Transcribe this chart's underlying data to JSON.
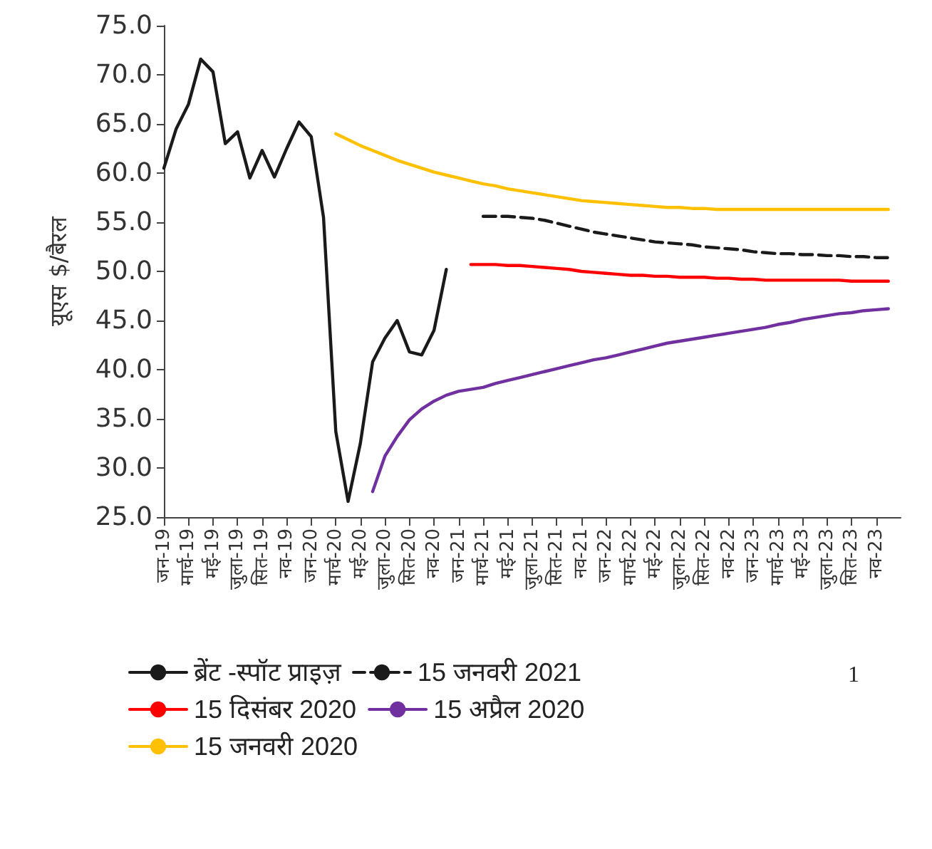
{
  "chart_data": {
    "type": "line",
    "ylabel": "यूएस $/बैरल",
    "categories": [
      "जन-19",
      null,
      "मार्च-19",
      null,
      "मई-19",
      null,
      "जुला-19",
      null,
      "सित-19",
      null,
      "नव-19",
      null,
      "जन-20",
      null,
      "मार्च-20",
      null,
      "मई-20",
      null,
      "जुला-20",
      null,
      "सित-20",
      null,
      "नव-20",
      null,
      "जन-21",
      null,
      "मार्च-21",
      null,
      "मई-21",
      null,
      "जुला-21",
      null,
      "सित-21",
      null,
      "नव-21",
      null,
      "जन-22",
      null,
      "मार्च-22",
      null,
      "मई-22",
      null,
      "जुला-22",
      null,
      "सित-22",
      null,
      "नव-22",
      null,
      "जन-23",
      null,
      "मार्च-23",
      null,
      "मई-23",
      null,
      "जुला-23",
      null,
      "सित-23",
      null,
      "नव-23",
      null,
      null
    ],
    "series": [
      {
        "name": "ब्रेंट -स्पॉट प्राइज़",
        "color": "#1a1a1a",
        "values": [
          60.5,
          64.5,
          67,
          71.6,
          70.3,
          63,
          64.2,
          59.5,
          62.3,
          59.6,
          62.5,
          65.2,
          63.7,
          55.5,
          33.7,
          26.6,
          32.5,
          40.8,
          43.2,
          45,
          41.8,
          41.5,
          44,
          50.2,
          null,
          null,
          null,
          null,
          null,
          null,
          null,
          null,
          null,
          null,
          null,
          null,
          null,
          null,
          null,
          null,
          null,
          null,
          null,
          null,
          null,
          null,
          null,
          null,
          null,
          null,
          null,
          null,
          null,
          null,
          null,
          null,
          null,
          null,
          null,
          null,
          null
        ]
      },
      {
        "name": "15 जनवरी 2021",
        "color": "#1a1a1a",
        "line_style": "dashed",
        "values": [
          null,
          null,
          null,
          null,
          null,
          null,
          null,
          null,
          null,
          null,
          null,
          null,
          null,
          null,
          null,
          null,
          null,
          null,
          null,
          null,
          null,
          null,
          null,
          null,
          null,
          null,
          55.6,
          55.6,
          55.6,
          55.5,
          55.4,
          55.2,
          54.9,
          54.6,
          54.3,
          54.0,
          53.8,
          53.6,
          53.4,
          53.2,
          53.0,
          52.9,
          52.8,
          52.7,
          52.5,
          52.4,
          52.3,
          52.2,
          52.0,
          51.9,
          51.8,
          51.8,
          51.7,
          51.7,
          51.6,
          51.6,
          51.5,
          51.5,
          51.4,
          51.4,
          null
        ]
      },
      {
        "name": "15 दिसंबर 2020",
        "color": "#ff0000",
        "values": [
          null,
          null,
          null,
          null,
          null,
          null,
          null,
          null,
          null,
          null,
          null,
          null,
          null,
          null,
          null,
          null,
          null,
          null,
          null,
          null,
          null,
          null,
          null,
          null,
          null,
          50.7,
          50.7,
          50.7,
          50.6,
          50.6,
          50.5,
          50.4,
          50.3,
          50.2,
          50.0,
          49.9,
          49.8,
          49.7,
          49.6,
          49.6,
          49.5,
          49.5,
          49.4,
          49.4,
          49.4,
          49.3,
          49.3,
          49.2,
          49.2,
          49.1,
          49.1,
          49.1,
          49.1,
          49.1,
          49.1,
          49.1,
          49.0,
          49.0,
          49.0,
          49.0,
          null
        ]
      },
      {
        "name": "15 अप्रैल 2020",
        "color": "#7030a0",
        "values": [
          null,
          null,
          null,
          null,
          null,
          null,
          null,
          null,
          null,
          null,
          null,
          null,
          null,
          null,
          null,
          null,
          null,
          27.6,
          31.2,
          33.2,
          34.9,
          36.0,
          36.8,
          37.4,
          37.8,
          38.0,
          38.2,
          38.6,
          38.9,
          39.2,
          39.5,
          39.8,
          40.1,
          40.4,
          40.7,
          41.0,
          41.2,
          41.5,
          41.8,
          42.1,
          42.4,
          42.7,
          42.9,
          43.1,
          43.3,
          43.5,
          43.7,
          43.9,
          44.1,
          44.3,
          44.6,
          44.8,
          45.1,
          45.3,
          45.5,
          45.7,
          45.8,
          46.0,
          46.1,
          46.2,
          null
        ]
      },
      {
        "name": "15 जनवरी 2020",
        "color": "#ffc000",
        "values": [
          null,
          null,
          null,
          null,
          null,
          null,
          null,
          null,
          null,
          null,
          null,
          null,
          null,
          null,
          64.0,
          63.4,
          62.8,
          62.3,
          61.8,
          61.3,
          60.9,
          60.5,
          60.1,
          59.8,
          59.5,
          59.2,
          58.9,
          58.7,
          58.4,
          58.2,
          58.0,
          57.8,
          57.6,
          57.4,
          57.2,
          57.1,
          57.0,
          56.9,
          56.8,
          56.7,
          56.6,
          56.5,
          56.5,
          56.4,
          56.4,
          56.3,
          56.3,
          56.3,
          56.3,
          56.3,
          56.3,
          56.3,
          56.3,
          56.3,
          56.3,
          56.3,
          56.3,
          56.3,
          56.3,
          56.3,
          null
        ]
      }
    ],
    "ylim": [
      25,
      75
    ],
    "yticks": [
      {
        "value": 25,
        "label": "25.0"
      },
      {
        "value": 30,
        "label": "30.0"
      },
      {
        "value": 35,
        "label": "35.0"
      },
      {
        "value": 40,
        "label": "40.0"
      },
      {
        "value": 45,
        "label": "45.0"
      },
      {
        "value": 50,
        "label": "50.0"
      },
      {
        "value": 55,
        "label": "55.0"
      },
      {
        "value": 60,
        "label": "60.0"
      },
      {
        "value": 65,
        "label": "65.0"
      },
      {
        "value": 70,
        "label": "70.0"
      },
      {
        "value": 75,
        "label": "75.0"
      }
    ],
    "annotations": [
      "1"
    ],
    "grid": false,
    "legend": "bottom",
    "marker": "none",
    "line_style": "solid"
  }
}
